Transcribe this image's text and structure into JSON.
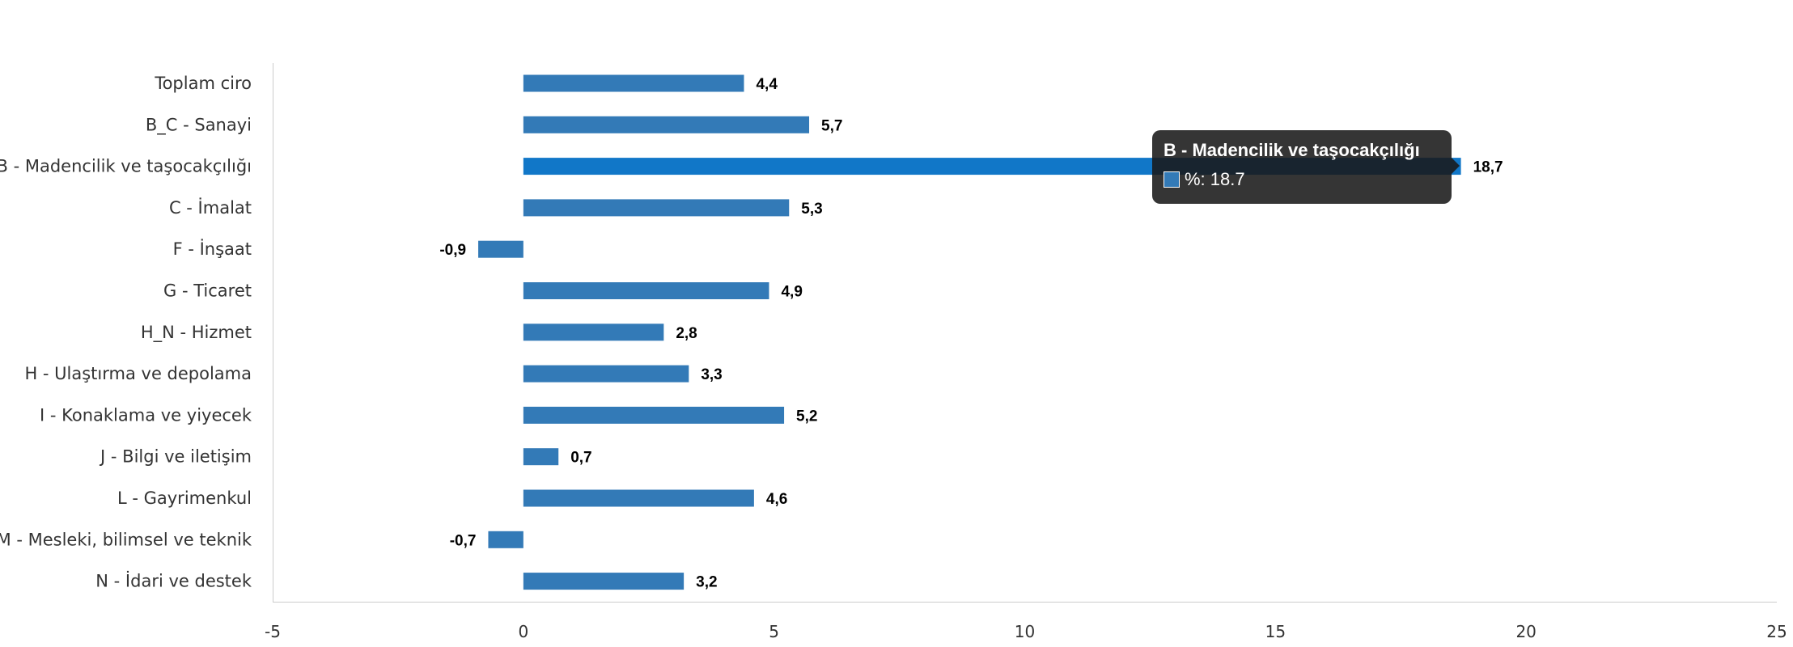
{
  "chart_data": {
    "type": "bar",
    "orientation": "horizontal",
    "categories": [
      "Toplam ciro",
      "B_C - Sanayi",
      "B - Madencilik ve taşocakçılığı",
      "C - İmalat",
      "F - İnşaat",
      "G - Ticaret",
      "H_N - Hizmet",
      "H - Ulaştırma ve depolama",
      "I - Konaklama ve yiyecek",
      "J - Bilgi ve iletişim",
      "L - Gayrimenkul",
      "M - Mesleki, bilimsel ve teknik",
      "N - İdari ve destek"
    ],
    "values": [
      4.4,
      5.7,
      18.7,
      5.3,
      -0.9,
      4.9,
      2.8,
      3.3,
      5.2,
      0.7,
      4.6,
      -0.7,
      3.2
    ],
    "value_labels": [
      "4,4",
      "5,7",
      "18,7",
      "5,3",
      "-0,9",
      "4,9",
      "2,8",
      "3,3",
      "5,2",
      "0,7",
      "4,6",
      "-0,7",
      "3,2"
    ],
    "xlim": [
      -5,
      25
    ],
    "xticks": [
      -5,
      0,
      5,
      10,
      15,
      20,
      25
    ],
    "grid": false,
    "bar_color": "#337ab7",
    "highlight_color": "#1177c8",
    "highlighted_index": 2
  },
  "tooltip": {
    "title": "B - Madencilik ve taşocakçılığı",
    "series_label": "%: 18.7"
  }
}
